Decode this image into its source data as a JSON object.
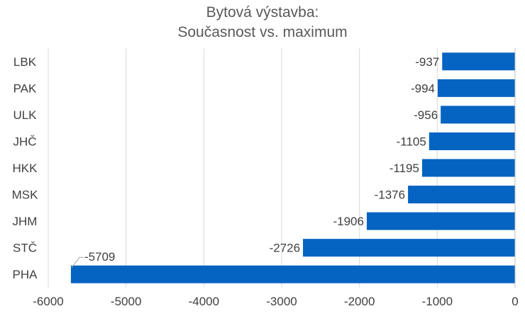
{
  "title_line1": "Bytová výstavba:",
  "title_line2": "Současnost vs. maximum",
  "chart_data": {
    "type": "bar",
    "orientation": "horizontal",
    "title": "Bytová výstavba: Současnost vs. maximum",
    "categories": [
      "LBK",
      "PAK",
      "ULK",
      "JHČ",
      "HKK",
      "MSK",
      "JHM",
      "STČ",
      "PHA"
    ],
    "values": [
      -937,
      -994,
      -956,
      -1105,
      -1195,
      -1376,
      -1906,
      -2726,
      -5709
    ],
    "data_labels": [
      "-937",
      "-994",
      "-956",
      "-1105",
      "-1195",
      "-1376",
      "-1906",
      "-2726",
      "-5709"
    ],
    "xlim": [
      -6000,
      0
    ],
    "x_ticks": [
      -6000,
      -5000,
      -4000,
      -3000,
      -2000,
      -1000,
      0
    ],
    "x_tick_labels": [
      "-6000",
      "-5000",
      "-4000",
      "-3000",
      "-2000",
      "-1000",
      "0"
    ],
    "grid": "vertical",
    "bar_color": "#0563c1",
    "text_color": "#404040",
    "grid_color": "#d9d9d9"
  }
}
